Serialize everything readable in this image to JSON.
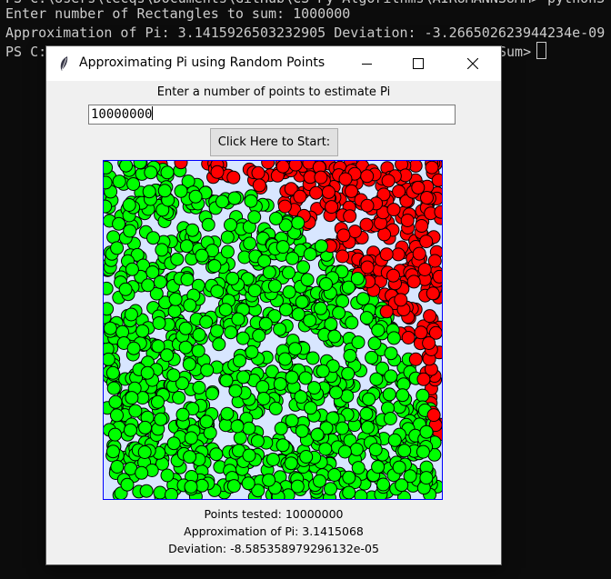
{
  "terminal": {
    "line0": "PS C:\\Users\\tecqs\\Documents\\GitHub\\CS-Py-Algorithms\\AIRUMANNSUMM> python3 .",
    "line1": "Enter number of Rectangles to sum: 1000000",
    "line2": "Approximation of Pi: 3.1415926503232905 Deviation: -3.266502623944234e-09",
    "line3_left": "PS C:",
    "line3_right": "Sum>"
  },
  "window": {
    "title": "Approximating Pi using Random Points",
    "icon": "feather-icon",
    "controls": {
      "minimize": "minimize-icon",
      "maximize": "maximize-icon",
      "close": "close-icon"
    }
  },
  "form": {
    "prompt": "Enter a number of points to estimate Pi",
    "input_value": "10000000",
    "start_label": "Click Here to Start:"
  },
  "plot": {
    "inside_color": "#ff0000",
    "outside_color": "#00ff00",
    "background_color": "#d8e6ff",
    "border_color": "#0000ff"
  },
  "results": {
    "points_tested": "Points tested: 10000000",
    "approximation": "Approximation of Pi: 3.1415068",
    "deviation": "Deviation: -8.585358979296132e-05"
  }
}
